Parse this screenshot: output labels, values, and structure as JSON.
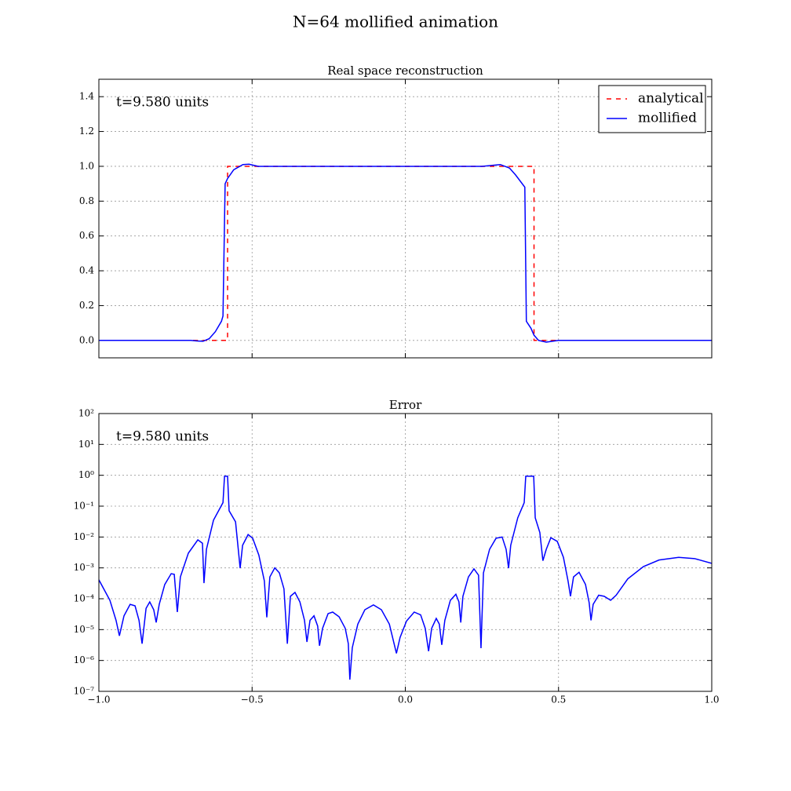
{
  "title": "N=64 mollified animation",
  "chart_data": [
    {
      "type": "line",
      "title": "Real space reconstruction",
      "annotation": "t=9.580 units",
      "xlim": [
        -1,
        1
      ],
      "xticks": [
        -0.5,
        0,
        0.5
      ],
      "show_xtick_labels": false,
      "ylim": [
        -0.1,
        1.5
      ],
      "yticks": [
        {
          "value": 0,
          "label": "0.0"
        },
        0.2,
        0.4,
        0.6,
        0.8,
        {
          "value": 1,
          "label": "1.0"
        },
        1.2,
        1.4
      ],
      "grid": true,
      "legend": "upper right",
      "series": [
        {
          "name": "analytical",
          "color": "#ff0000",
          "linestyle": "dashed",
          "x": [
            -1,
            -0.58,
            -0.58,
            0.42,
            0.42,
            1
          ],
          "values": [
            0,
            0,
            1,
            1,
            0,
            0
          ]
        },
        {
          "name": "mollified",
          "color": "#0000ff",
          "linestyle": "solid",
          "x": [
            -1,
            -0.7,
            -0.68,
            -0.66,
            -0.64,
            -0.62,
            -0.6,
            -0.595,
            -0.588,
            -0.58,
            -0.56,
            -0.53,
            -0.51,
            -0.48,
            0.25,
            0.28,
            0.31,
            0.34,
            0.36,
            0.39,
            0.395,
            0.41,
            0.42,
            0.435,
            0.46,
            0.48,
            0.5,
            1
          ],
          "values": [
            0,
            0,
            -0.003,
            -0.005,
            0.01,
            0.05,
            0.11,
            0.14,
            0.9,
            0.93,
            0.98,
            1.01,
            1.012,
            1.0,
            1.0,
            1.005,
            1.01,
            0.99,
            0.95,
            0.88,
            0.11,
            0.07,
            0.03,
            0.0,
            -0.01,
            -0.005,
            0,
            0
          ]
        }
      ]
    },
    {
      "type": "line",
      "title": "Error",
      "annotation": "t=9.580 units",
      "xlim": [
        -1,
        1
      ],
      "xticks": [
        {
          "value": -1,
          "label": "−1.0"
        },
        {
          "value": -0.5,
          "label": "−0.5"
        },
        {
          "value": 0,
          "label": "0.0"
        },
        0.5,
        {
          "value": 1,
          "label": "1.0"
        }
      ],
      "show_xtick_labels": true,
      "log_scale": "y",
      "ylim": [
        1e-07,
        100
      ],
      "yticks": [
        {
          "value": 1e-07,
          "label": "10⁻⁷"
        },
        {
          "value": 1e-06,
          "label": "10⁻⁶"
        },
        {
          "value": 1e-05,
          "label": "10⁻⁵"
        },
        {
          "value": 0.0001,
          "label": "10⁻⁴"
        },
        {
          "value": 0.001,
          "label": "10⁻³"
        },
        {
          "value": 0.01,
          "label": "10⁻²"
        },
        {
          "value": 0.1,
          "label": "10⁻¹"
        },
        {
          "value": 1,
          "label": "10⁰"
        },
        {
          "value": 10,
          "label": "10¹"
        },
        {
          "value": 100,
          "label": "10²"
        }
      ],
      "grid": true,
      "series": [
        {
          "color": "#0000ff",
          "linestyle": "solid",
          "x": [
            -1,
            -0.964,
            -0.944,
            -0.933,
            -0.918,
            -0.898,
            -0.882,
            -0.869,
            -0.859,
            -0.846,
            -0.834,
            -0.821,
            -0.813,
            -0.803,
            -0.785,
            -0.764,
            -0.754,
            -0.744,
            -0.734,
            -0.708,
            -0.677,
            -0.662,
            -0.657,
            -0.649,
            -0.626,
            -0.595,
            -0.59,
            -0.58,
            -0.575,
            -0.554,
            -0.539,
            -0.531,
            -0.513,
            -0.498,
            -0.478,
            -0.46,
            -0.452,
            -0.442,
            -0.426,
            -0.411,
            -0.396,
            -0.385,
            -0.375,
            -0.36,
            -0.344,
            -0.329,
            -0.321,
            -0.311,
            -0.298,
            -0.286,
            -0.28,
            -0.27,
            -0.252,
            -0.237,
            -0.216,
            -0.196,
            -0.186,
            -0.181,
            -0.173,
            -0.155,
            -0.132,
            -0.104,
            -0.078,
            -0.052,
            -0.029,
            -0.017,
            0.004,
            0.029,
            0.05,
            0.065,
            0.076,
            0.086,
            0.101,
            0.111,
            0.119,
            0.129,
            0.147,
            0.165,
            0.175,
            0.181,
            0.188,
            0.206,
            0.224,
            0.239,
            0.247,
            0.255,
            0.275,
            0.296,
            0.316,
            0.329,
            0.337,
            0.344,
            0.367,
            0.388,
            0.393,
            0.419,
            0.424,
            0.439,
            0.449,
            0.46,
            0.475,
            0.496,
            0.516,
            0.531,
            0.539,
            0.549,
            0.567,
            0.588,
            0.6,
            0.606,
            0.613,
            0.631,
            0.649,
            0.67,
            0.688,
            0.726,
            0.777,
            0.828,
            0.892,
            0.944,
            1
          ],
          "values": [
            0.00041,
            8.9e-05,
            2e-05,
            6.3e-06,
            2.8e-05,
            6.6e-05,
            5.9e-05,
            2e-05,
            3.5e-06,
            4.9e-05,
            7.9e-05,
            4.4e-05,
            1.7e-05,
            6.6e-05,
            0.00029,
            0.00065,
            0.00062,
            3.7e-05,
            0.00051,
            0.003,
            0.0081,
            0.0063,
            0.00032,
            0.004,
            0.035,
            0.13,
            0.93,
            0.93,
            0.071,
            0.031,
            0.00098,
            0.0054,
            0.012,
            0.0091,
            0.0026,
            0.00038,
            2.5e-05,
            0.00051,
            0.001,
            0.00069,
            0.00021,
            3.5e-06,
            0.00012,
            0.00016,
            7.9e-05,
            2e-05,
            4e-06,
            2e-05,
            2.8e-05,
            1.3e-05,
            3e-06,
            1.1e-05,
            3.3e-05,
            3.7e-05,
            2.6e-05,
            1.1e-05,
            3.5e-06,
            2.4e-07,
            2.6e-06,
            1.5e-05,
            4.4e-05,
            6.3e-05,
            4.4e-05,
            1.5e-05,
            1.7e-06,
            5.6e-06,
            1.9e-05,
            3.7e-05,
            3e-05,
            1.1e-05,
            2e-06,
            1.1e-05,
            2.3e-05,
            1.5e-05,
            3.2e-06,
            2e-05,
            8.9e-05,
            0.00014,
            7.9e-05,
            1.7e-05,
            0.00012,
            0.00051,
            0.00093,
            0.00058,
            2.5e-06,
            0.00069,
            0.004,
            0.0091,
            0.01,
            0.004,
            0.00098,
            0.0054,
            0.042,
            0.13,
            0.93,
            0.93,
            0.042,
            0.014,
            0.0017,
            0.004,
            0.0095,
            0.0072,
            0.0022,
            0.00038,
            0.00012,
            0.00051,
            0.00072,
            0.00029,
            7.4e-05,
            2e-05,
            6.6e-05,
            0.00013,
            0.00012,
            8.9e-05,
            0.00013,
            0.00044,
            0.0011,
            0.0018,
            0.0022,
            0.002,
            0.0014
          ]
        }
      ]
    }
  ]
}
